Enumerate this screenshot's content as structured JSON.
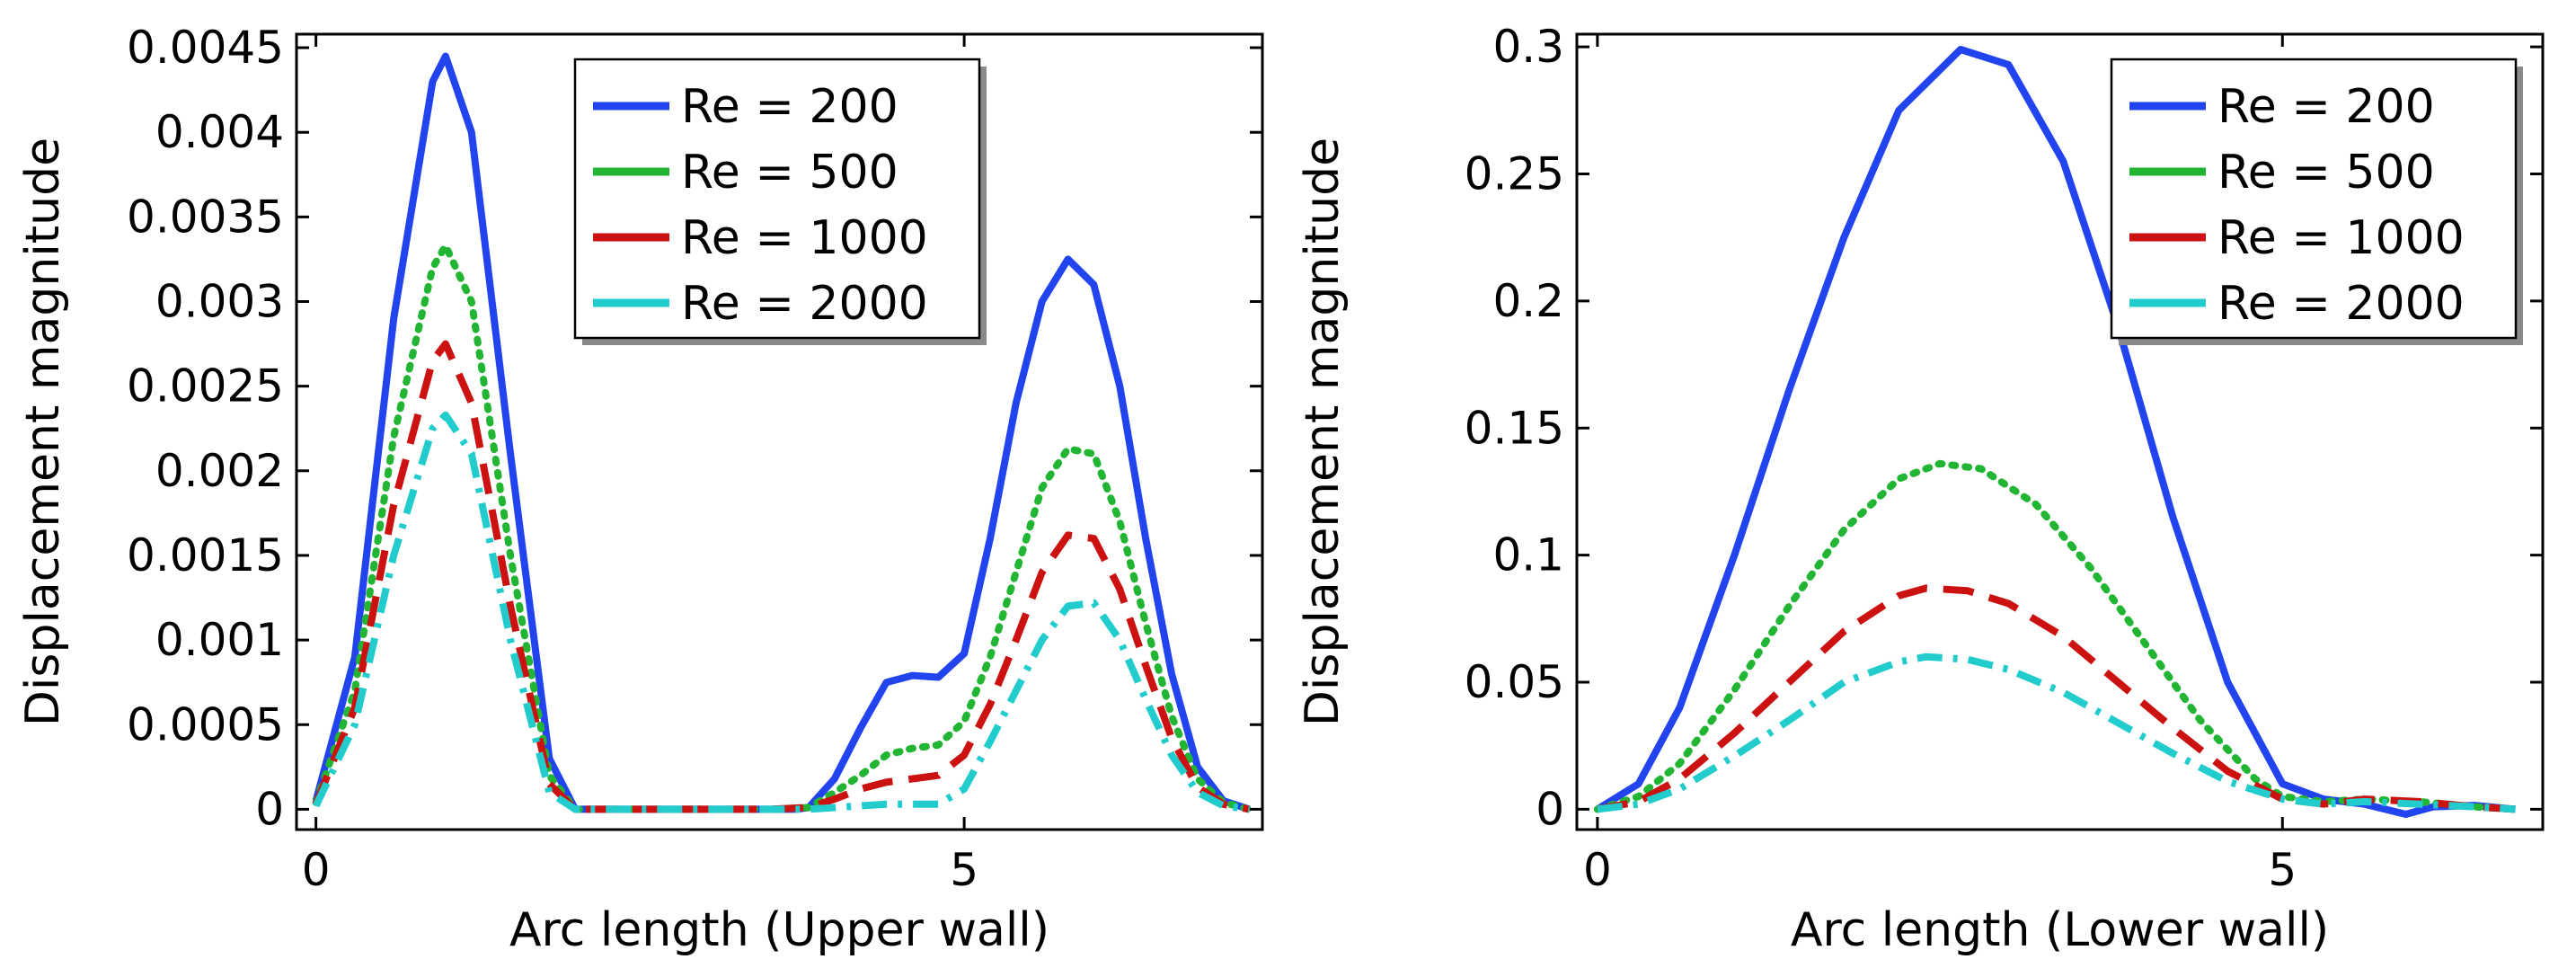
{
  "chart_data": [
    {
      "type": "line",
      "xlabel": "Arc length (Upper wall)",
      "ylabel": "Displacement magnitude",
      "xlim": [
        -0.15,
        7.3
      ],
      "ylim": [
        -0.00012,
        0.00458
      ],
      "xticks": [
        {
          "value": 0,
          "label": "0"
        },
        {
          "value": 5,
          "label": "5"
        }
      ],
      "yticks": [
        {
          "value": 0,
          "label": "0"
        },
        {
          "value": 0.0005,
          "label": "0.0005"
        },
        {
          "value": 0.001,
          "label": "0.001"
        },
        {
          "value": 0.0015,
          "label": "0.0015"
        },
        {
          "value": 0.002,
          "label": "0.002"
        },
        {
          "value": 0.0025,
          "label": "0.0025"
        },
        {
          "value": 0.003,
          "label": "0.003"
        },
        {
          "value": 0.0035,
          "label": "0.0035"
        },
        {
          "value": 0.004,
          "label": "0.004"
        },
        {
          "value": 0.0045,
          "label": "0.0045"
        }
      ],
      "legend": {
        "position": "top-right"
      },
      "series": [
        {
          "name": "Re = 200",
          "color": "#2244ee",
          "dash": "solid",
          "x": [
            0,
            0.3,
            0.6,
            0.9,
            1.0,
            1.2,
            1.5,
            1.8,
            2.0,
            2.5,
            3.0,
            3.5,
            3.7,
            3.8,
            4.0,
            4.2,
            4.4,
            4.6,
            4.8,
            5.0,
            5.2,
            5.4,
            5.6,
            5.8,
            6.0,
            6.2,
            6.4,
            6.6,
            6.8,
            7.0,
            7.2
          ],
          "values": [
            5e-05,
            0.0009,
            0.0029,
            0.0043,
            0.00445,
            0.004,
            0.0021,
            0.0003,
            0.0,
            0.0,
            0.0,
            0.0,
            0.0,
            1e-05,
            0.00018,
            0.00048,
            0.00075,
            0.00079,
            0.00078,
            0.00092,
            0.0016,
            0.0024,
            0.003,
            0.00325,
            0.0031,
            0.0025,
            0.0016,
            0.0008,
            0.00025,
            5e-05,
            0.0
          ]
        },
        {
          "name": "Re = 500",
          "color": "#22b533",
          "dash": "dotted",
          "x": [
            0,
            0.3,
            0.6,
            0.9,
            1.0,
            1.2,
            1.5,
            1.8,
            2.0,
            2.5,
            3.0,
            3.5,
            3.8,
            4.0,
            4.2,
            4.4,
            4.6,
            4.8,
            5.0,
            5.2,
            5.4,
            5.6,
            5.8,
            6.0,
            6.2,
            6.4,
            6.6,
            6.8,
            7.0,
            7.2
          ],
          "values": [
            4e-05,
            0.0007,
            0.0022,
            0.0032,
            0.00333,
            0.003,
            0.0015,
            0.0002,
            0.0,
            0.0,
            0.0,
            0.0,
            1e-05,
            0.0001,
            0.0002,
            0.00032,
            0.00036,
            0.00038,
            0.00052,
            0.0009,
            0.0014,
            0.0019,
            0.00213,
            0.0021,
            0.0017,
            0.0011,
            0.00055,
            0.00018,
            4e-05,
            0.0
          ]
        },
        {
          "name": "Re = 1000",
          "color": "#cc1111",
          "dash": "dashed",
          "x": [
            0,
            0.3,
            0.6,
            0.9,
            1.0,
            1.2,
            1.5,
            1.8,
            2.0,
            2.5,
            3.0,
            3.5,
            3.8,
            4.0,
            4.2,
            4.4,
            4.6,
            4.8,
            5.0,
            5.2,
            5.4,
            5.6,
            5.8,
            6.0,
            6.2,
            6.4,
            6.6,
            6.8,
            7.0,
            7.2
          ],
          "values": [
            3e-05,
            0.0006,
            0.0018,
            0.00265,
            0.00275,
            0.0024,
            0.0012,
            0.00015,
            0.0,
            0.0,
            0.0,
            0.0,
            1e-05,
            6e-05,
            0.00012,
            0.00016,
            0.00018,
            0.0002,
            0.00032,
            0.00062,
            0.001,
            0.0014,
            0.00162,
            0.0016,
            0.0013,
            0.00085,
            0.00042,
            0.00013,
            3e-05,
            0.0
          ]
        },
        {
          "name": "Re = 2000",
          "color": "#22cccc",
          "dash": "dashdot",
          "x": [
            0,
            0.3,
            0.6,
            0.9,
            1.0,
            1.2,
            1.5,
            1.8,
            2.0,
            2.5,
            3.0,
            3.5,
            3.8,
            4.0,
            4.2,
            4.4,
            4.6,
            4.8,
            5.0,
            5.2,
            5.4,
            5.6,
            5.8,
            6.0,
            6.2,
            6.4,
            6.6,
            6.8,
            7.0,
            7.2
          ],
          "values": [
            2e-05,
            0.0005,
            0.0015,
            0.00225,
            0.00233,
            0.0021,
            0.001,
            0.0001,
            0.0,
            0.0,
            0.0,
            0.0,
            0.0,
            1e-05,
            2e-05,
            3e-05,
            3e-05,
            3e-05,
            0.00012,
            0.0004,
            0.0007,
            0.001,
            0.0012,
            0.00122,
            0.001,
            0.00065,
            0.00032,
            0.0001,
            2e-05,
            0.0
          ]
        }
      ]
    },
    {
      "type": "line",
      "xlabel": "Arc length (Lower wall)",
      "ylabel": "Displacement magnitude",
      "xlim": [
        -0.15,
        6.9
      ],
      "ylim": [
        -0.008,
        0.305
      ],
      "xticks": [
        {
          "value": 0,
          "label": "0"
        },
        {
          "value": 5,
          "label": "5"
        }
      ],
      "yticks": [
        {
          "value": 0,
          "label": "0"
        },
        {
          "value": 0.05,
          "label": "0.05"
        },
        {
          "value": 0.1,
          "label": "0.1"
        },
        {
          "value": 0.15,
          "label": "0.15"
        },
        {
          "value": 0.2,
          "label": "0.2"
        },
        {
          "value": 0.25,
          "label": "0.25"
        },
        {
          "value": 0.3,
          "label": "0.3"
        }
      ],
      "legend": {
        "position": "top-right"
      },
      "series": [
        {
          "name": "Re = 200",
          "color": "#2244ee",
          "dash": "solid",
          "x": [
            0,
            0.3,
            0.6,
            1.0,
            1.4,
            1.8,
            2.2,
            2.65,
            3.0,
            3.4,
            3.8,
            4.2,
            4.6,
            5.0,
            5.3,
            5.6,
            5.9,
            6.1,
            6.4,
            6.7
          ],
          "values": [
            0.0,
            0.01,
            0.04,
            0.1,
            0.165,
            0.225,
            0.275,
            0.299,
            0.293,
            0.255,
            0.19,
            0.115,
            0.05,
            0.01,
            0.004,
            0.002,
            -0.002,
            0.001,
            0.0015,
            0.0
          ]
        },
        {
          "name": "Re = 500",
          "color": "#22b533",
          "dash": "dotted",
          "x": [
            0,
            0.3,
            0.6,
            1.0,
            1.4,
            1.8,
            2.2,
            2.5,
            2.8,
            3.2,
            3.6,
            4.0,
            4.4,
            4.8,
            5.0,
            5.3,
            5.6,
            6.0,
            6.4,
            6.7
          ],
          "values": [
            0.0,
            0.005,
            0.018,
            0.047,
            0.08,
            0.11,
            0.13,
            0.136,
            0.134,
            0.12,
            0.095,
            0.065,
            0.035,
            0.012,
            0.005,
            0.003,
            0.004,
            0.003,
            0.001,
            0.0
          ]
        },
        {
          "name": "Re = 1000",
          "color": "#cc1111",
          "dash": "dashed",
          "x": [
            0,
            0.3,
            0.6,
            1.0,
            1.4,
            1.8,
            2.2,
            2.4,
            2.7,
            3.0,
            3.4,
            3.8,
            4.2,
            4.6,
            5.0,
            5.3,
            5.6,
            6.0,
            6.4,
            6.7
          ],
          "values": [
            0.0,
            0.003,
            0.012,
            0.03,
            0.05,
            0.07,
            0.084,
            0.087,
            0.086,
            0.081,
            0.068,
            0.05,
            0.032,
            0.015,
            0.004,
            0.002,
            0.004,
            0.003,
            0.001,
            0.0
          ]
        },
        {
          "name": "Re = 2000",
          "color": "#22cccc",
          "dash": "dashdot",
          "x": [
            0,
            0.3,
            0.6,
            1.0,
            1.4,
            1.8,
            2.2,
            2.4,
            2.7,
            3.0,
            3.4,
            3.8,
            4.2,
            4.6,
            5.0,
            5.3,
            5.6,
            6.0,
            6.4,
            6.7
          ],
          "values": [
            0.0,
            0.002,
            0.008,
            0.021,
            0.035,
            0.05,
            0.058,
            0.06,
            0.059,
            0.055,
            0.046,
            0.034,
            0.022,
            0.011,
            0.004,
            0.002,
            0.003,
            0.002,
            0.001,
            0.0
          ]
        }
      ]
    }
  ]
}
